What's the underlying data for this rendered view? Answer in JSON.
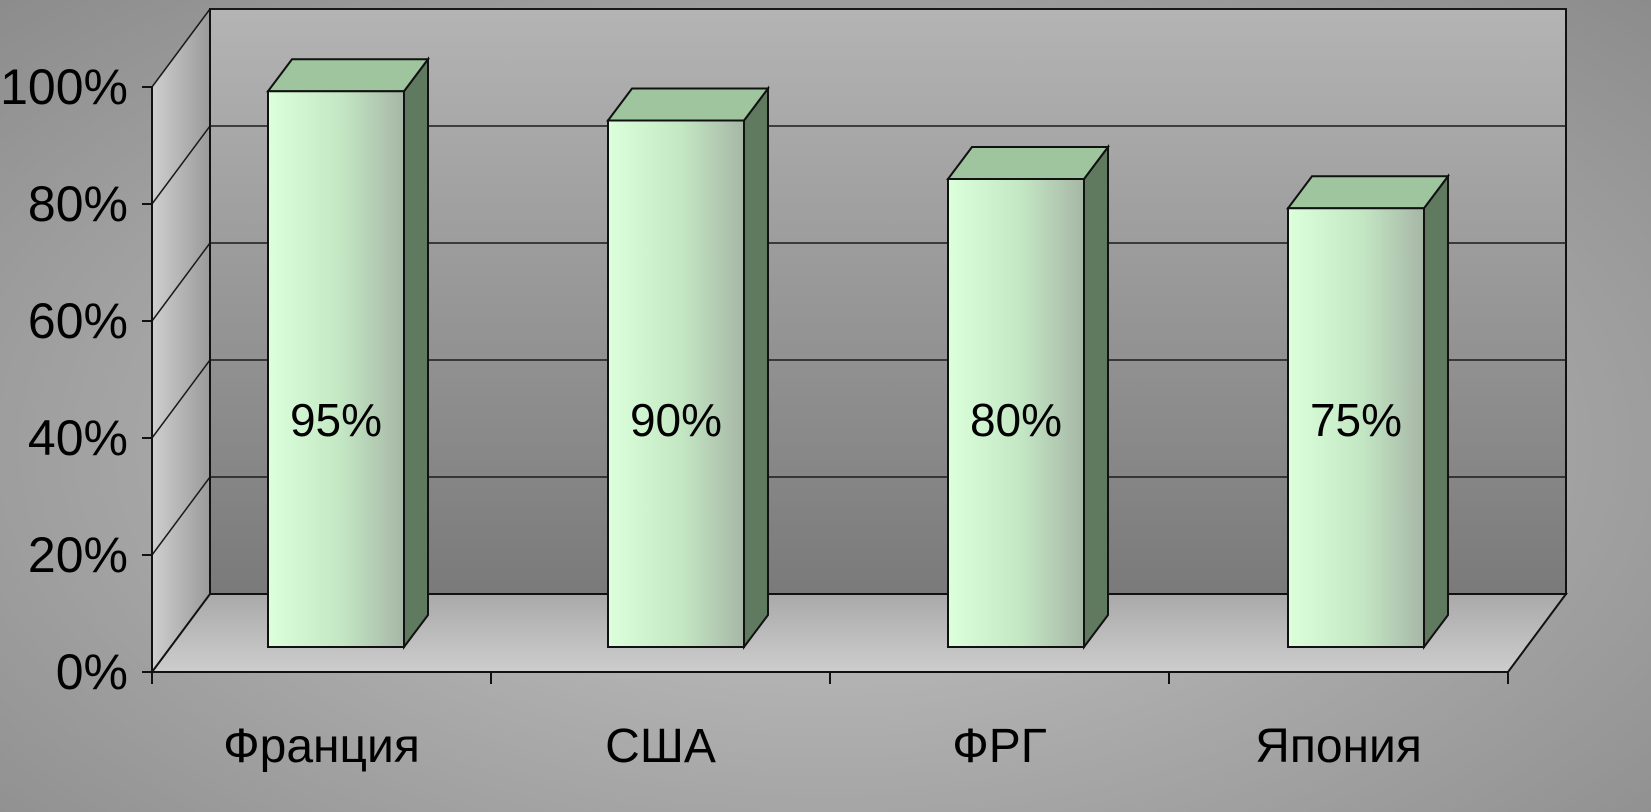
{
  "chart_data": {
    "type": "bar",
    "categories": [
      "Франция",
      "США",
      "ФРГ",
      "Япония"
    ],
    "values": [
      95,
      90,
      80,
      75
    ],
    "data_labels": [
      "95%",
      "90%",
      "80%",
      "75%"
    ],
    "y_ticks": [
      "0%",
      "20%",
      "40%",
      "60%",
      "80%",
      "100%"
    ],
    "ylim": [
      0,
      100
    ],
    "grid": true,
    "style": "3d-column",
    "colors": {
      "bar_front_light": "#dcffdc",
      "bar_front_dark": "#aab9aa",
      "bar_top": "#9ec59e",
      "bar_side": "#5f7a5f",
      "back_wall_light": "#b4b4b4",
      "back_wall_dark": "#7a7a7a",
      "floor": "#bdbdbd",
      "grid": "#1a1a1a"
    }
  }
}
